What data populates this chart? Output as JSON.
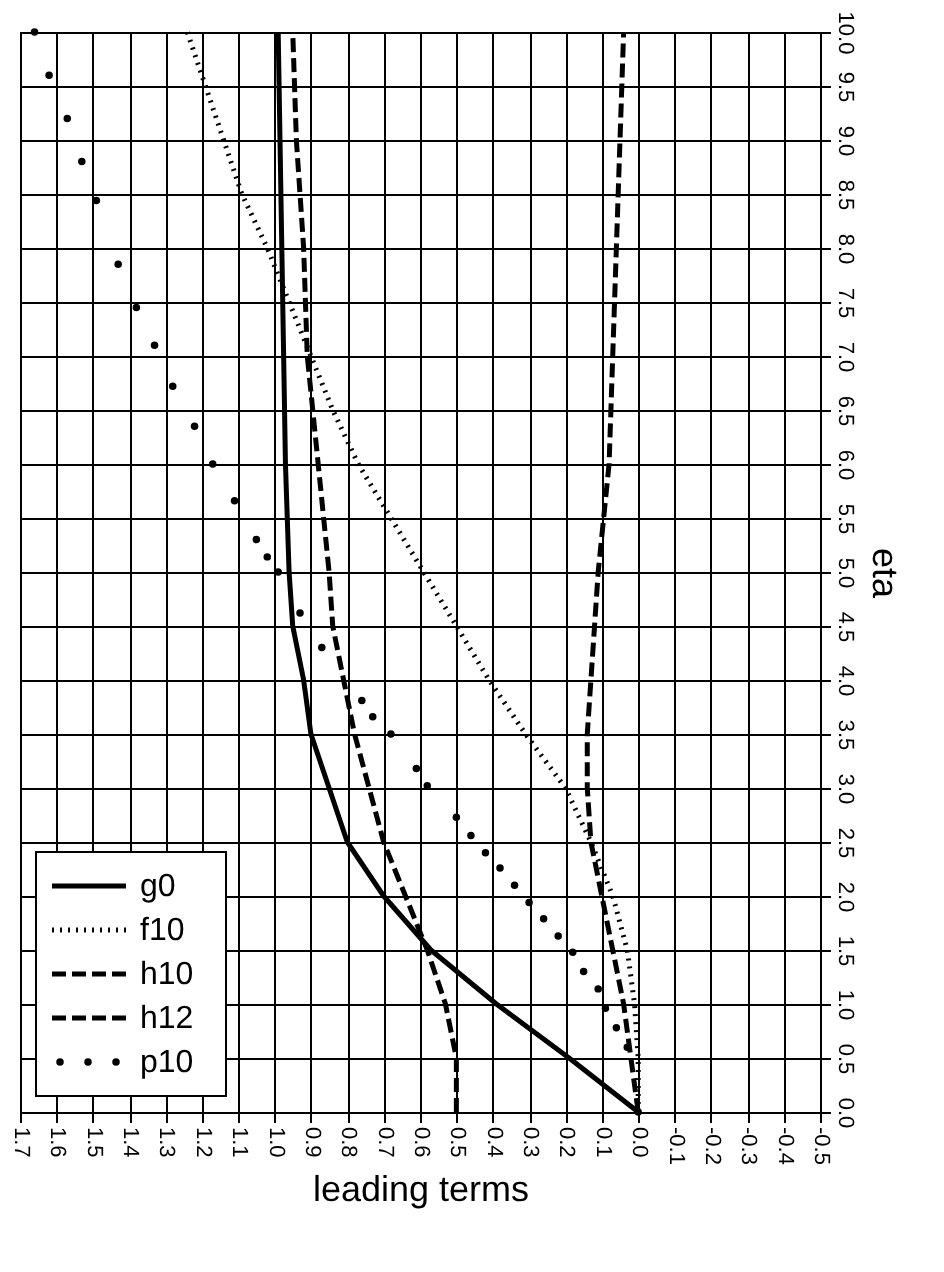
{
  "chart_data": {
    "type": "line",
    "xlabel": "leading terms",
    "ylabel": "eta",
    "xlim": [
      1.7,
      -0.5
    ],
    "xticks": [
      1.7,
      1.6,
      1.5,
      1.4,
      1.3,
      1.2,
      1.1,
      {
        "value": 1,
        "label": "1.0"
      },
      0.9,
      0.8,
      0.7,
      0.6,
      0.5,
      0.4,
      0.3,
      0.2,
      0.1,
      {
        "value": 0,
        "label": "0.0"
      },
      -0.1,
      -0.2,
      -0.3,
      -0.4,
      -0.5
    ],
    "ylim": [
      0,
      10
    ],
    "yticks": [
      {
        "value": 0,
        "label": "0.0"
      },
      0.5,
      {
        "value": 1,
        "label": "1.0"
      },
      1.5,
      {
        "value": 2,
        "label": "2.0"
      },
      2.5,
      {
        "value": 3,
        "label": "3.0"
      },
      3.5,
      {
        "value": 4,
        "label": "4.0"
      },
      4.5,
      {
        "value": 5,
        "label": "5.0"
      },
      5.5,
      {
        "value": 6,
        "label": "6.0"
      },
      6.5,
      {
        "value": 7,
        "label": "7.0"
      },
      7.5,
      {
        "value": 8,
        "label": "8.0"
      },
      8.5,
      {
        "value": 9,
        "label": "9.0"
      },
      9.5,
      {
        "value": 10,
        "label": "10.0"
      }
    ],
    "grid": true,
    "legend": "bottom left",
    "series": [
      {
        "name": "g0",
        "line_style": "solid",
        "color": "#000000",
        "x": [
          0.0,
          0.19,
          0.39,
          0.57,
          0.7,
          0.8,
          0.85,
          0.9,
          0.92,
          0.95,
          0.96,
          0.97,
          0.975,
          0.98,
          0.985,
          0.99
        ],
        "values": [
          0,
          0.5,
          1.0,
          1.5,
          2.0,
          2.5,
          3.0,
          3.5,
          4.0,
          4.5,
          5.0,
          6.0,
          7.0,
          8.0,
          9.0,
          10.0
        ]
      },
      {
        "name": "f10",
        "line_style": "dotted",
        "color": "#000000",
        "x": [
          0.0,
          0.0,
          0.01,
          0.03,
          0.07,
          0.13,
          0.2,
          0.31,
          0.41,
          0.5,
          0.59,
          0.68,
          0.77,
          0.84,
          0.9,
          0.96,
          1.02,
          1.09,
          1.14,
          1.19,
          1.24
        ],
        "values": [
          0,
          0.5,
          1.0,
          1.5,
          2.0,
          2.5,
          3.0,
          3.5,
          4.0,
          4.5,
          5.0,
          5.5,
          6.0,
          6.5,
          7.0,
          7.5,
          8.0,
          8.5,
          9.0,
          9.5,
          10.0
        ]
      },
      {
        "name": "h10",
        "line_style": "dashed",
        "color": "#000000",
        "x": [
          0.5,
          0.5,
          0.53,
          0.58,
          0.64,
          0.7,
          0.74,
          0.78,
          0.81,
          0.84,
          0.85,
          0.88,
          0.91,
          0.92,
          0.94,
          0.95
        ],
        "values": [
          0,
          0.5,
          1.0,
          1.5,
          2.0,
          2.5,
          3.0,
          3.5,
          4.0,
          4.5,
          5.0,
          6.0,
          7.0,
          8.0,
          9.0,
          10.0
        ]
      },
      {
        "name": "h12",
        "line_style": "dashed",
        "color": "#000000",
        "x": [
          0.0,
          0.02,
          0.04,
          0.07,
          0.1,
          0.13,
          0.14,
          0.14,
          0.13,
          0.12,
          0.11,
          0.08,
          0.07,
          0.06,
          0.05,
          0.04
        ],
        "values": [
          0,
          0.5,
          1.0,
          1.5,
          2.0,
          2.5,
          3.0,
          3.5,
          4.0,
          4.5,
          5.0,
          6.0,
          7.0,
          8.0,
          9.0,
          10.0
        ]
      },
      {
        "name": "p10",
        "type": "scatter",
        "marker": "circle",
        "color": "#000000",
        "x": [
          0.0,
          0.03,
          0.06,
          0.09,
          0.11,
          0.15,
          0.18,
          0.22,
          0.26,
          0.3,
          0.34,
          0.38,
          0.42,
          0.46,
          0.5,
          0.58,
          0.61,
          0.68,
          0.73,
          0.76,
          0.87,
          0.93,
          0.99,
          1.02,
          1.05,
          1.11,
          1.17,
          1.22,
          1.28,
          1.33,
          1.38,
          1.43,
          1.49,
          1.53,
          1.57,
          1.62,
          1.66
        ],
        "values": [
          0,
          0.6,
          0.78,
          0.96,
          1.14,
          1.3,
          1.48,
          1.63,
          1.79,
          1.94,
          2.1,
          2.26,
          2.4,
          2.56,
          2.73,
          3.02,
          3.18,
          3.5,
          3.66,
          3.81,
          4.3,
          4.62,
          5.0,
          5.14,
          5.3,
          5.66,
          6.0,
          6.35,
          6.72,
          7.1,
          7.45,
          7.85,
          8.44,
          8.8,
          9.2,
          9.6,
          10.0
        ]
      }
    ]
  }
}
